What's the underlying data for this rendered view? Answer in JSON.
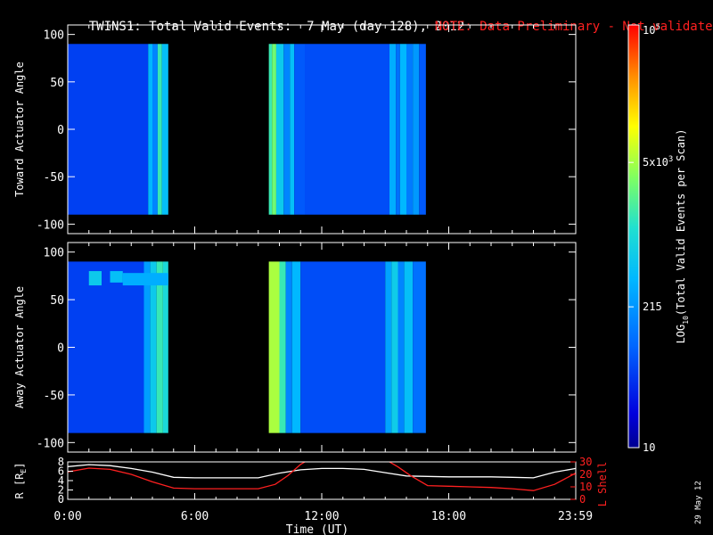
{
  "header": {
    "title": "TWINS1: Total Valid Events:  7 May (day 128), 2012",
    "note": "NOTE: Data Preliminary - Not validated",
    "note_color": "#ff2020"
  },
  "side_date": "29 May 12",
  "chart_data": [
    {
      "type": "heatmap",
      "ylabel": "Toward Actuator Angle",
      "ylim": [
        -110,
        110
      ],
      "y_ticks": [
        "100",
        "50",
        "0",
        "-50",
        "-100"
      ],
      "data_y_range": [
        -90,
        90
      ],
      "x_range_hours": [
        0,
        24
      ],
      "data_segments": [
        {
          "start": "0:00",
          "end": "4:45"
        },
        {
          "start": "9:30",
          "end": "16:55"
        }
      ],
      "bands": [
        {
          "start": 0.0,
          "end": 3.8,
          "level": 0.18
        },
        {
          "start": 3.8,
          "end": 4.0,
          "level": 0.4
        },
        {
          "start": 4.0,
          "end": 4.25,
          "level": 0.3
        },
        {
          "start": 4.25,
          "end": 4.45,
          "level": 0.55
        },
        {
          "start": 4.45,
          "end": 4.75,
          "level": 0.42
        },
        {
          "start": 9.5,
          "end": 9.65,
          "level": 0.55
        },
        {
          "start": 9.65,
          "end": 9.85,
          "level": 0.62
        },
        {
          "start": 9.85,
          "end": 10.2,
          "level": 0.45
        },
        {
          "start": 10.2,
          "end": 10.5,
          "level": 0.3
        },
        {
          "start": 10.5,
          "end": 10.7,
          "level": 0.42
        },
        {
          "start": 10.7,
          "end": 11.2,
          "level": 0.22
        },
        {
          "start": 11.2,
          "end": 15.2,
          "level": 0.2
        },
        {
          "start": 15.2,
          "end": 15.5,
          "level": 0.38
        },
        {
          "start": 15.5,
          "end": 15.7,
          "level": 0.26
        },
        {
          "start": 15.7,
          "end": 16.0,
          "level": 0.4
        },
        {
          "start": 16.0,
          "end": 16.3,
          "level": 0.28
        },
        {
          "start": 16.3,
          "end": 16.6,
          "level": 0.34
        },
        {
          "start": 16.6,
          "end": 16.92,
          "level": 0.22
        }
      ]
    },
    {
      "type": "heatmap",
      "ylabel": "Away Actuator Angle",
      "ylim": [
        -110,
        110
      ],
      "y_ticks": [
        "100",
        "50",
        "0",
        "-50",
        "-100"
      ],
      "data_y_range": [
        -90,
        90
      ],
      "x_range_hours": [
        0,
        24
      ],
      "data_segments": [
        {
          "start": "0:00",
          "end": "4:45"
        },
        {
          "start": "9:30",
          "end": "16:55"
        }
      ],
      "bands": [
        {
          "start": 0.0,
          "end": 3.6,
          "level": 0.18
        },
        {
          "start": 3.6,
          "end": 3.9,
          "level": 0.35
        },
        {
          "start": 3.9,
          "end": 4.2,
          "level": 0.45
        },
        {
          "start": 4.2,
          "end": 4.5,
          "level": 0.55
        },
        {
          "start": 4.5,
          "end": 4.75,
          "level": 0.5
        },
        {
          "start": 9.5,
          "end": 10.0,
          "level": 0.68
        },
        {
          "start": 10.0,
          "end": 10.3,
          "level": 0.55
        },
        {
          "start": 10.3,
          "end": 10.6,
          "level": 0.3
        },
        {
          "start": 10.6,
          "end": 11.0,
          "level": 0.4
        },
        {
          "start": 11.0,
          "end": 15.0,
          "level": 0.2
        },
        {
          "start": 15.0,
          "end": 15.3,
          "level": 0.36
        },
        {
          "start": 15.3,
          "end": 15.6,
          "level": 0.46
        },
        {
          "start": 15.6,
          "end": 15.9,
          "level": 0.3
        },
        {
          "start": 15.9,
          "end": 16.3,
          "level": 0.42
        },
        {
          "start": 16.3,
          "end": 16.92,
          "level": 0.26
        }
      ],
      "high_angle_patches": [
        {
          "start": 1.0,
          "end": 1.6,
          "y_low": 65,
          "y_high": 80,
          "level": 0.45
        },
        {
          "start": 2.0,
          "end": 2.6,
          "y_low": 68,
          "y_high": 80,
          "level": 0.42
        },
        {
          "start": 2.6,
          "end": 4.75,
          "y_low": 65,
          "y_high": 78,
          "level": 0.38
        }
      ]
    },
    {
      "type": "line",
      "xlabel": "Time (UT)",
      "x_tick_labels": [
        "0:00",
        "6:00",
        "12:00",
        "18:00",
        "23:59"
      ],
      "x_tick_hours": [
        0,
        6,
        12,
        18,
        23.98
      ],
      "left_axis": {
        "label": "R [R",
        "label_sub": "E",
        "label_end": "]",
        "ylim": [
          0,
          8
        ],
        "ticks": [
          "8",
          "6",
          "4",
          "2",
          "0"
        ]
      },
      "right_axis": {
        "label": "L Shell",
        "color": "#ff2020",
        "ylim": [
          0,
          30
        ],
        "ticks": [
          "30",
          "20",
          "10",
          "0"
        ]
      },
      "series": [
        {
          "axis": "left",
          "color": "#ffffff",
          "x": [
            0,
            1,
            2,
            3,
            4,
            5,
            6,
            7,
            8,
            9,
            10,
            11,
            12,
            13,
            14,
            15,
            16,
            17,
            18,
            19,
            20,
            21,
            22,
            23,
            24
          ],
          "y": [
            7.0,
            7.4,
            7.2,
            6.6,
            5.8,
            4.7,
            4.6,
            4.6,
            4.6,
            4.6,
            5.6,
            6.3,
            6.6,
            6.6,
            6.4,
            5.7,
            5.0,
            4.9,
            4.8,
            4.8,
            4.8,
            4.7,
            4.6,
            5.8,
            6.6
          ]
        },
        {
          "axis": "right",
          "color": "#ff2020",
          "x": [
            0,
            1,
            2,
            3,
            4,
            5,
            6,
            7,
            8,
            9,
            9.8,
            10.4,
            11.0,
            11.3
          ],
          "y": [
            22,
            25,
            24,
            20,
            14,
            9,
            8.5,
            8.5,
            8.5,
            8.5,
            12,
            19,
            28,
            31
          ]
        },
        {
          "axis": "right",
          "color": "#ff2020",
          "x": [
            15.1,
            15.6,
            16.2,
            17.0,
            18,
            19,
            20,
            21,
            22,
            23,
            24
          ],
          "y": [
            31,
            26,
            19,
            11,
            10.5,
            10,
            9.5,
            8.5,
            7,
            12,
            21
          ]
        }
      ]
    },
    {
      "type": "colorbar",
      "label_prefix": "LOG",
      "label_sub": "10",
      "label_suffix": "(Total Valid  Events per Scan)",
      "ticks": [
        {
          "base": "10",
          "exp": "5",
          "value": 100000
        },
        {
          "base": "5x10",
          "exp": "3",
          "value": 5000
        },
        {
          "base": "215",
          "exp": "",
          "value": 215
        },
        {
          "base": "10",
          "exp": "",
          "value": 10
        }
      ]
    }
  ]
}
